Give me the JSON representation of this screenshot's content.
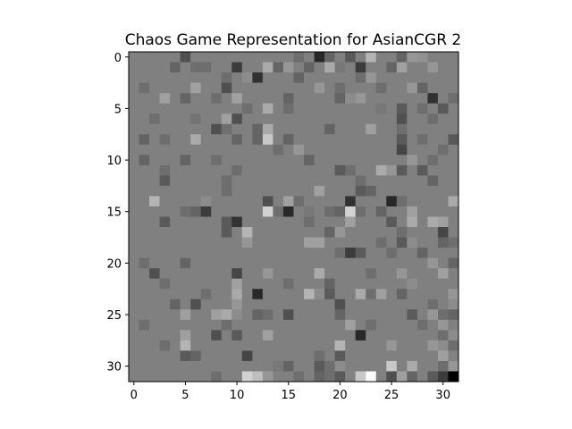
{
  "chart_data": {
    "type": "heatmap",
    "title": "Chaos Game Representation for AsianCGR 2",
    "xlabel": "",
    "ylabel": "",
    "rows": 32,
    "cols": 32,
    "xlim": [
      -0.5,
      31.5
    ],
    "ylim": [
      31.5,
      -0.5
    ],
    "x_ticks": [
      0,
      5,
      10,
      15,
      20,
      25,
      30
    ],
    "y_ticks": [
      0,
      5,
      10,
      15,
      20,
      25,
      30
    ],
    "colormap": "gray",
    "base_value": 128,
    "grid": false,
    "cells": [
      [
        0,
        5,
        80
      ],
      [
        0,
        18,
        40
      ],
      [
        0,
        19,
        100
      ],
      [
        0,
        21,
        90
      ],
      [
        0,
        23,
        180
      ],
      [
        0,
        26,
        100
      ],
      [
        0,
        27,
        150
      ],
      [
        0,
        16,
        110
      ],
      [
        0,
        28,
        145
      ],
      [
        1,
        4,
        100
      ],
      [
        1,
        6,
        110
      ],
      [
        1,
        10,
        60
      ],
      [
        1,
        13,
        170
      ],
      [
        1,
        14,
        100
      ],
      [
        1,
        15,
        150
      ],
      [
        1,
        17,
        100
      ],
      [
        1,
        19,
        170
      ],
      [
        1,
        20,
        120
      ],
      [
        1,
        22,
        60
      ],
      [
        1,
        25,
        100
      ],
      [
        1,
        26,
        160
      ],
      [
        1,
        29,
        150
      ],
      [
        1,
        7,
        110
      ],
      [
        2,
        12,
        50
      ],
      [
        2,
        16,
        100
      ],
      [
        2,
        23,
        150
      ],
      [
        2,
        9,
        110
      ],
      [
        2,
        11,
        140
      ],
      [
        2,
        22,
        110
      ],
      [
        3,
        1,
        110
      ],
      [
        3,
        6,
        160
      ],
      [
        3,
        9,
        80
      ],
      [
        3,
        18,
        150
      ],
      [
        3,
        20,
        110
      ],
      [
        3,
        27,
        150
      ],
      [
        3,
        28,
        100
      ],
      [
        3,
        24,
        110
      ],
      [
        4,
        3,
        160
      ],
      [
        4,
        5,
        100
      ],
      [
        4,
        10,
        160
      ],
      [
        4,
        20,
        100
      ],
      [
        4,
        22,
        150
      ],
      [
        4,
        21,
        140
      ],
      [
        4,
        29,
        50
      ],
      [
        4,
        31,
        110
      ],
      [
        4,
        15,
        100
      ],
      [
        4,
        8,
        110
      ],
      [
        5,
        13,
        170
      ],
      [
        5,
        15,
        110
      ],
      [
        5,
        24,
        120
      ],
      [
        5,
        26,
        90
      ],
      [
        5,
        28,
        110
      ],
      [
        5,
        30,
        90
      ],
      [
        5,
        11,
        110
      ],
      [
        6,
        2,
        110
      ],
      [
        6,
        9,
        160
      ],
      [
        6,
        10,
        80
      ],
      [
        6,
        26,
        80
      ],
      [
        6,
        29,
        110
      ],
      [
        6,
        6,
        115
      ],
      [
        7,
        8,
        80
      ],
      [
        7,
        13,
        170
      ],
      [
        7,
        12,
        100
      ],
      [
        7,
        19,
        100
      ],
      [
        7,
        23,
        160
      ],
      [
        7,
        26,
        110
      ],
      [
        7,
        9,
        110
      ],
      [
        8,
        1,
        100
      ],
      [
        8,
        3,
        110
      ],
      [
        8,
        6,
        170
      ],
      [
        8,
        10,
        100
      ],
      [
        8,
        12,
        100
      ],
      [
        8,
        13,
        200
      ],
      [
        8,
        15,
        100
      ],
      [
        8,
        26,
        90
      ],
      [
        8,
        28,
        110
      ],
      [
        8,
        31,
        90
      ],
      [
        9,
        14,
        110
      ],
      [
        9,
        16,
        150
      ],
      [
        9,
        26,
        70
      ],
      [
        9,
        30,
        110
      ],
      [
        10,
        1,
        100
      ],
      [
        10,
        5,
        100
      ],
      [
        10,
        8,
        110
      ],
      [
        10,
        17,
        100
      ],
      [
        10,
        29,
        110
      ],
      [
        10,
        27,
        150
      ],
      [
        11,
        3,
        110
      ],
      [
        11,
        10,
        110
      ],
      [
        11,
        20,
        90
      ],
      [
        11,
        24,
        170
      ],
      [
        11,
        25,
        150
      ],
      [
        11,
        26,
        90
      ],
      [
        11,
        28,
        90
      ],
      [
        11,
        21,
        110
      ],
      [
        12,
        3,
        90
      ],
      [
        12,
        9,
        110
      ],
      [
        12,
        22,
        110
      ],
      [
        12,
        29,
        100
      ],
      [
        13,
        18,
        160
      ],
      [
        13,
        22,
        90
      ],
      [
        13,
        23,
        100
      ],
      [
        13,
        9,
        110
      ],
      [
        14,
        2,
        180
      ],
      [
        14,
        7,
        140
      ],
      [
        14,
        13,
        80
      ],
      [
        14,
        15,
        160
      ],
      [
        14,
        16,
        110
      ],
      [
        14,
        21,
        50
      ],
      [
        14,
        25,
        40
      ],
      [
        14,
        31,
        170
      ],
      [
        14,
        26,
        110
      ],
      [
        15,
        6,
        100
      ],
      [
        15,
        7,
        60
      ],
      [
        15,
        13,
        210
      ],
      [
        15,
        14,
        110
      ],
      [
        15,
        15,
        40
      ],
      [
        15,
        19,
        110
      ],
      [
        15,
        20,
        100
      ],
      [
        15,
        21,
        210
      ],
      [
        15,
        22,
        110
      ],
      [
        15,
        24,
        100
      ],
      [
        15,
        27,
        160
      ],
      [
        15,
        5,
        110
      ],
      [
        15,
        17,
        120
      ],
      [
        16,
        3,
        90
      ],
      [
        16,
        9,
        90
      ],
      [
        16,
        10,
        50
      ],
      [
        16,
        17,
        110
      ],
      [
        16,
        21,
        160
      ],
      [
        16,
        25,
        90
      ],
      [
        16,
        27,
        170
      ],
      [
        16,
        29,
        170
      ],
      [
        16,
        30,
        160
      ],
      [
        17,
        9,
        90
      ],
      [
        17,
        11,
        180
      ],
      [
        17,
        19,
        100
      ],
      [
        17,
        30,
        70
      ],
      [
        17,
        20,
        150
      ],
      [
        17,
        26,
        110
      ],
      [
        18,
        11,
        150
      ],
      [
        18,
        17,
        160
      ],
      [
        18,
        18,
        160
      ],
      [
        18,
        24,
        110
      ],
      [
        18,
        26,
        90
      ],
      [
        18,
        30,
        100
      ],
      [
        18,
        31,
        110
      ],
      [
        18,
        27,
        140
      ],
      [
        19,
        21,
        60
      ],
      [
        19,
        22,
        90
      ],
      [
        19,
        25,
        110
      ],
      [
        19,
        28,
        100
      ],
      [
        19,
        20,
        110
      ],
      [
        20,
        1,
        110
      ],
      [
        20,
        5,
        100
      ],
      [
        20,
        29,
        150
      ],
      [
        20,
        31,
        100
      ],
      [
        21,
        2,
        80
      ],
      [
        21,
        10,
        70
      ],
      [
        21,
        13,
        150
      ],
      [
        21,
        18,
        170
      ],
      [
        21,
        26,
        150
      ],
      [
        21,
        30,
        160
      ],
      [
        21,
        23,
        110
      ],
      [
        22,
        10,
        160
      ],
      [
        22,
        15,
        110
      ],
      [
        22,
        19,
        100
      ],
      [
        22,
        27,
        140
      ],
      [
        22,
        3,
        110
      ],
      [
        23,
        7,
        110
      ],
      [
        23,
        10,
        170
      ],
      [
        23,
        12,
        40
      ],
      [
        23,
        17,
        180
      ],
      [
        23,
        18,
        140
      ],
      [
        23,
        19,
        90
      ],
      [
        23,
        22,
        170
      ],
      [
        23,
        23,
        110
      ],
      [
        23,
        24,
        160
      ],
      [
        23,
        26,
        100
      ],
      [
        23,
        31,
        150
      ],
      [
        24,
        4,
        100
      ],
      [
        24,
        6,
        80
      ],
      [
        24,
        10,
        150
      ],
      [
        24,
        20,
        80
      ],
      [
        24,
        29,
        110
      ],
      [
        24,
        31,
        140
      ],
      [
        25,
        5,
        160
      ],
      [
        25,
        8,
        160
      ],
      [
        25,
        9,
        170
      ],
      [
        25,
        10,
        140
      ],
      [
        25,
        12,
        100
      ],
      [
        25,
        13,
        110
      ],
      [
        25,
        15,
        80
      ],
      [
        25,
        20,
        100
      ],
      [
        25,
        27,
        90
      ],
      [
        25,
        29,
        150
      ],
      [
        25,
        31,
        100
      ],
      [
        25,
        30,
        110
      ],
      [
        26,
        1,
        110
      ],
      [
        26,
        9,
        110
      ],
      [
        26,
        21,
        160
      ],
      [
        26,
        23,
        110
      ],
      [
        26,
        28,
        110
      ],
      [
        26,
        30,
        150
      ],
      [
        27,
        5,
        160
      ],
      [
        27,
        8,
        80
      ],
      [
        27,
        10,
        90
      ],
      [
        27,
        13,
        160
      ],
      [
        27,
        22,
        40
      ],
      [
        27,
        31,
        140
      ],
      [
        27,
        30,
        110
      ],
      [
        28,
        3,
        110
      ],
      [
        28,
        5,
        180
      ],
      [
        28,
        20,
        180
      ],
      [
        28,
        25,
        150
      ],
      [
        28,
        29,
        150
      ],
      [
        28,
        30,
        140
      ],
      [
        28,
        31,
        110
      ],
      [
        29,
        5,
        90
      ],
      [
        29,
        6,
        100
      ],
      [
        29,
        11,
        70
      ],
      [
        29,
        18,
        110
      ],
      [
        29,
        20,
        90
      ],
      [
        29,
        30,
        160
      ],
      [
        29,
        31,
        130
      ],
      [
        30,
        14,
        120
      ],
      [
        30,
        15,
        100
      ],
      [
        30,
        18,
        90
      ],
      [
        30,
        19,
        110
      ],
      [
        30,
        20,
        140
      ],
      [
        30,
        25,
        200
      ],
      [
        30,
        27,
        170
      ],
      [
        30,
        30,
        110
      ],
      [
        30,
        31,
        150
      ],
      [
        31,
        8,
        110
      ],
      [
        31,
        11,
        210
      ],
      [
        31,
        12,
        190
      ],
      [
        31,
        13,
        150
      ],
      [
        31,
        16,
        110
      ],
      [
        31,
        18,
        100
      ],
      [
        31,
        19,
        110
      ],
      [
        31,
        20,
        90
      ],
      [
        31,
        21,
        130
      ],
      [
        31,
        22,
        200
      ],
      [
        31,
        23,
        250
      ],
      [
        31,
        25,
        80
      ],
      [
        31,
        26,
        160
      ],
      [
        31,
        27,
        100
      ],
      [
        31,
        29,
        90
      ],
      [
        31,
        30,
        60
      ],
      [
        31,
        31,
        0
      ]
    ]
  }
}
